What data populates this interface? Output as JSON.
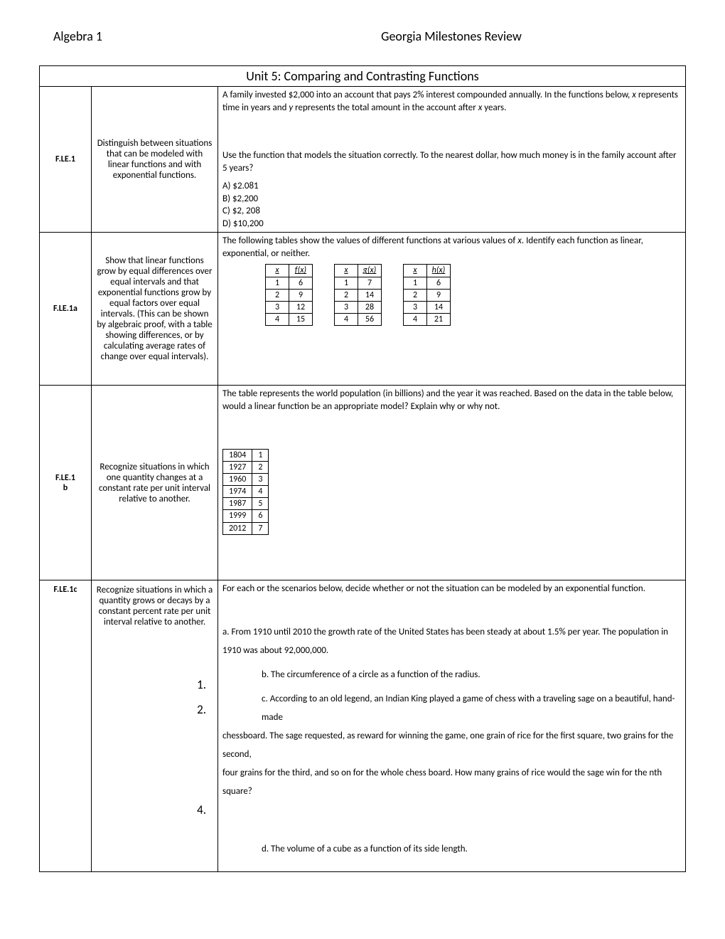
{
  "header": {
    "left": "Algebra 1",
    "center": "Georgia Milestones Review"
  },
  "unit_title": "Unit 5: Comparing and Contrasting Functions",
  "rows": [
    {
      "code": "F.LE.1",
      "desc": "Distinguish between situations that can be modeled with linear functions and with exponential functions.",
      "content": {
        "intro": "A family invested $2,000 into an account that pays 2% interest compounded annually. In the functions below, x represents time in years and y represents the total amount in the account after x years.",
        "question": "Use the function that models the situation correctly. To the nearest dollar, how much money is in the family account after 5 years?",
        "options": [
          "A) $2.081",
          "B) $2,200",
          "C) $2, 208",
          "D) $10,200"
        ]
      }
    },
    {
      "code": "F.LE.1a",
      "desc": "Show that linear functions grow by equal differences over equal intervals and that exponential functions grow by equal factors over equal intervals. (This can be shown by algebraic proof, with a table showing differences, or by calculating average rates of change over equal intervals).",
      "content": {
        "intro2": "The following tables show the values of different functions at various values of x. Identify each function as linear, exponential, or neither.",
        "tables": [
          {
            "header_x": "x",
            "header_fn": "f(x)",
            "rows": [
              [
                "1",
                "6"
              ],
              [
                "2",
                "9"
              ],
              [
                "3",
                "12"
              ],
              [
                "4",
                "15"
              ]
            ]
          },
          {
            "header_x": "x",
            "header_fn": "g(x)",
            "rows": [
              [
                "1",
                "7"
              ],
              [
                "2",
                "14"
              ],
              [
                "3",
                "28"
              ],
              [
                "4",
                "56"
              ]
            ]
          },
          {
            "header_x": "x",
            "header_fn": "h(x)",
            "rows": [
              [
                "1",
                "6"
              ],
              [
                "2",
                "9"
              ],
              [
                "3",
                "14"
              ],
              [
                "4",
                "21"
              ]
            ]
          }
        ]
      }
    },
    {
      "code": "F.LE.1b",
      "desc": "Recognize situations in which one quantity changes at a constant rate per unit interval relative to another.",
      "content": {
        "intro3": "The table represents the world population (in billions) and the year it was reached. Based on the data in the table below, would a linear function be an appropriate model? Explain why or why not.",
        "pop_rows": [
          [
            "1804",
            "1"
          ],
          [
            "1927",
            "2"
          ],
          [
            "1960",
            "3"
          ],
          [
            "1974",
            "4"
          ],
          [
            "1987",
            "5"
          ],
          [
            "1999",
            "6"
          ],
          [
            "2012",
            "7"
          ]
        ]
      }
    },
    {
      "code": "F.LE.1c",
      "desc": "Recognize situations in which a quantity grows or decays by a constant percent rate per unit interval relative to another.",
      "content": {
        "intro4": "For each or the scenarios below, decide whether or not the situation can be modeled by an exponential function.",
        "a": "a. From 1910 until 2010 the growth rate of the United States has been steady at about 1.5% per year. The population in 1910 was about 92,000,000.",
        "b": "b. The circumference of a circle as a function of the radius.",
        "c": "c. According to an old legend, an Indian King played a game of chess with a traveling sage on a beautiful, hand-made chessboard. The sage requested, as reward for winning the game, one grain of rice for the first square, two grains for the second, four grains for the third, and so on for the whole chess board. How many grains of rice would the sage win for the nth square?",
        "d": "d. The volume of a cube as a function of its side length.",
        "n1": "1.",
        "n2": "2.",
        "n4": "4."
      }
    }
  ]
}
